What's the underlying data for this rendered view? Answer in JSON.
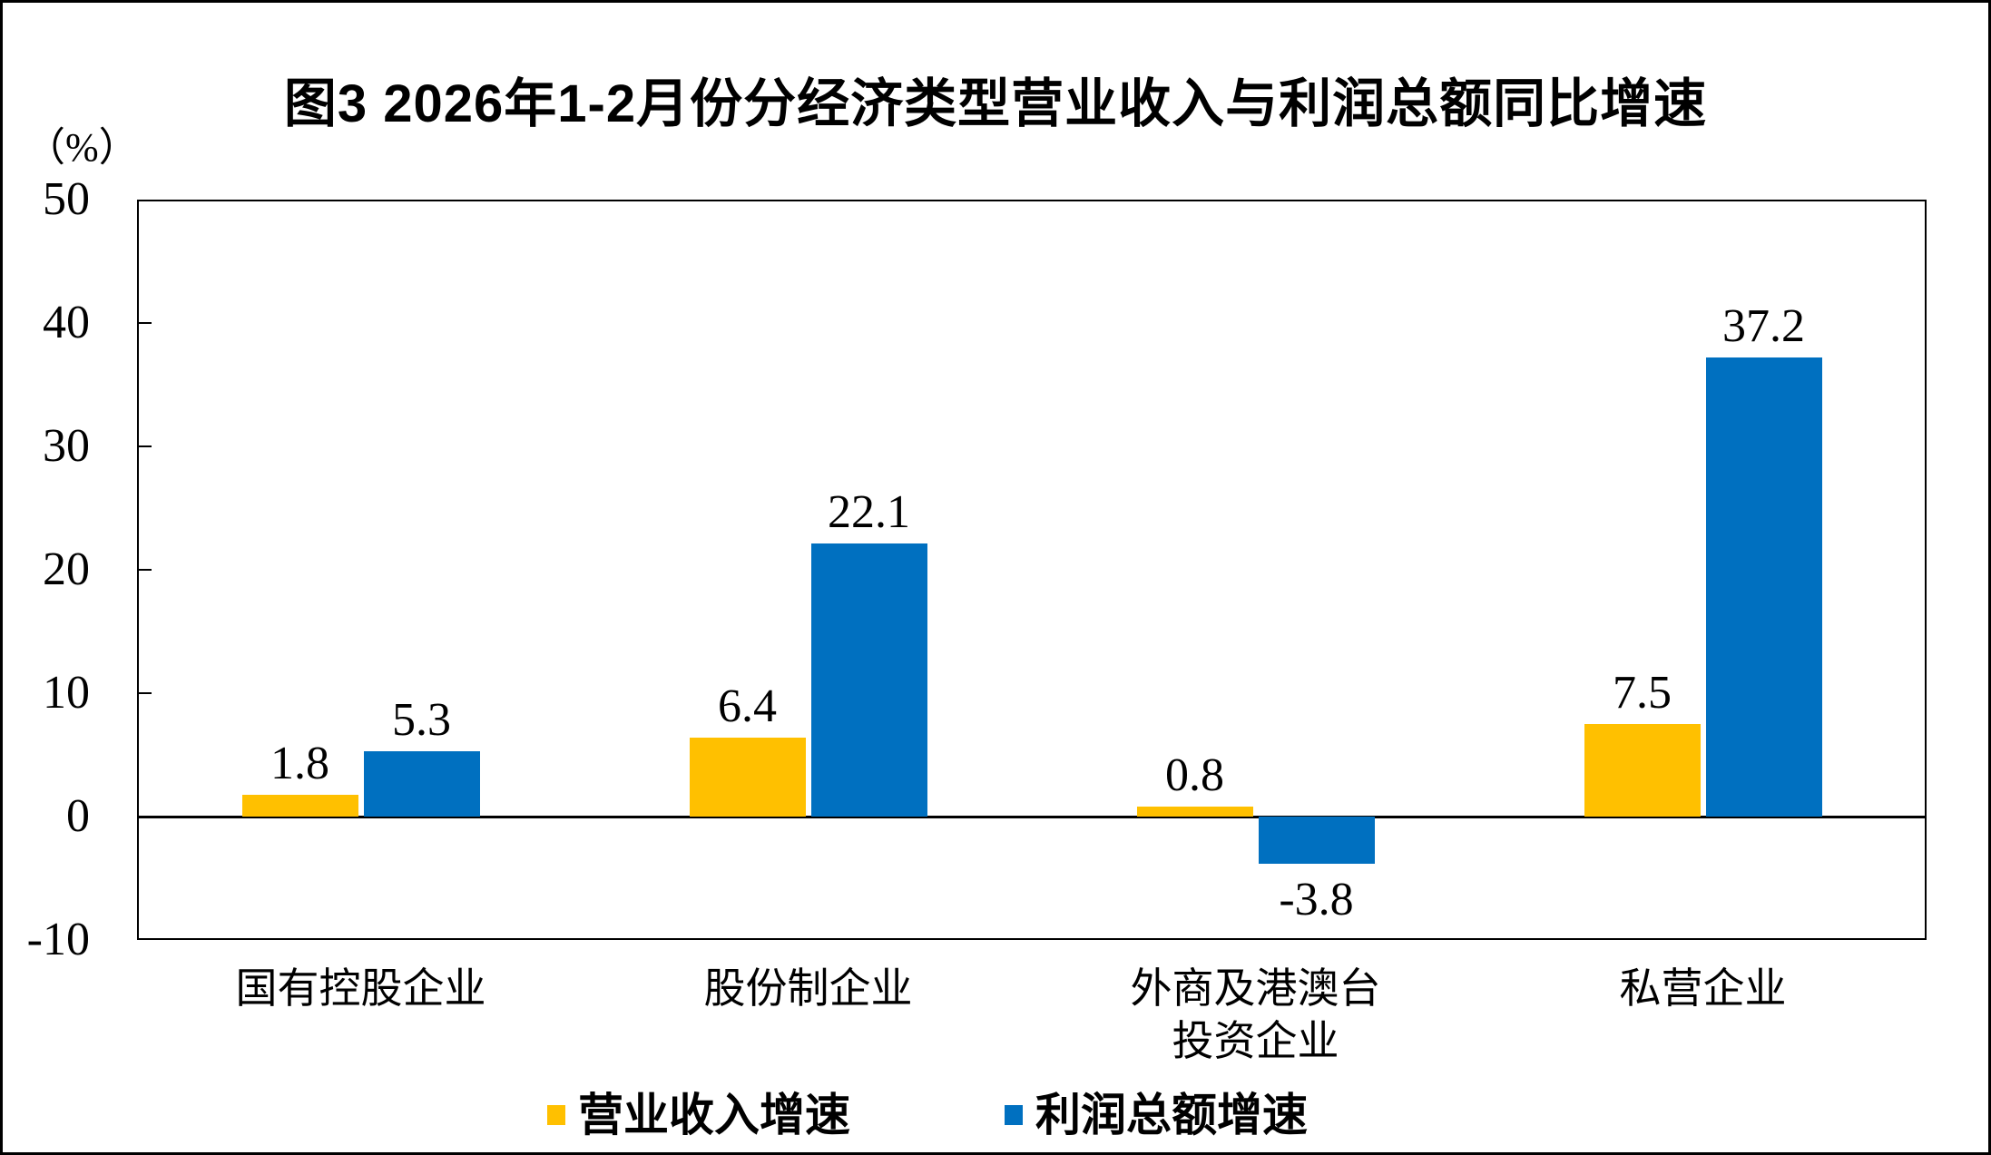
{
  "chart_data": {
    "type": "bar",
    "title": "图3 2026年1-2月份分经济类型营业收入与利润总额同比增速",
    "unit": "（%）",
    "categories": [
      "国有控股企业",
      "股份制企业",
      "外商及港澳台投资企业",
      "私营企业"
    ],
    "category_label_lines": [
      [
        "国有控股企业"
      ],
      [
        "股份制企业"
      ],
      [
        "外商及港澳台",
        "投资企业"
      ],
      [
        "私营企业"
      ]
    ],
    "series": [
      {
        "name": "营业收入增速",
        "color": "#FFC000",
        "values": [
          1.8,
          6.4,
          0.8,
          7.5
        ]
      },
      {
        "name": "利润总额增速",
        "color": "#0070C0",
        "values": [
          5.3,
          22.1,
          -3.8,
          37.2
        ]
      }
    ],
    "value_labels": [
      [
        "1.8",
        "6.4",
        "0.8",
        "7.5"
      ],
      [
        "5.3",
        "22.1",
        "-3.8",
        "37.2"
      ]
    ],
    "ylim": [
      -10,
      50
    ],
    "yticks": [
      50,
      40,
      30,
      20,
      10,
      0,
      -10
    ],
    "ytick_labels": [
      "50",
      "40",
      "30",
      "20",
      "10",
      "0",
      "-10"
    ],
    "grid": false,
    "legend_position": "bottom",
    "background": "#FFFFFF",
    "axis_color": "#000000"
  }
}
